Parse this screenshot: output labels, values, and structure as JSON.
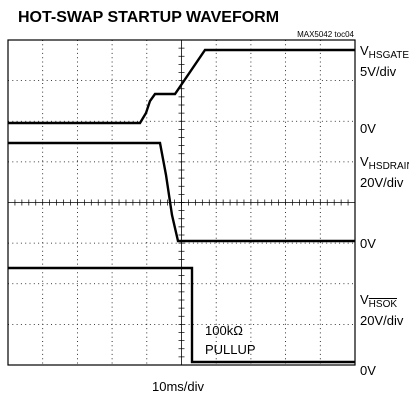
{
  "header": {
    "title": "HOT-SWAP STARTUP WAVEFORM",
    "figure_id": "MAX5042 toc04"
  },
  "channels": [
    {
      "prefix": "V",
      "name": "HSGATE",
      "scale": "5V/div",
      "zero": "0V"
    },
    {
      "prefix": "V",
      "name": "HSDRAIN",
      "scale": "20V/div",
      "zero": "0V"
    },
    {
      "prefix": "V",
      "name": "HSOK",
      "scale": "20V/div",
      "zero": "0V"
    }
  ],
  "annotation": [
    "100kΩ",
    "PULLUP"
  ],
  "timebase": "10ms/div"
}
